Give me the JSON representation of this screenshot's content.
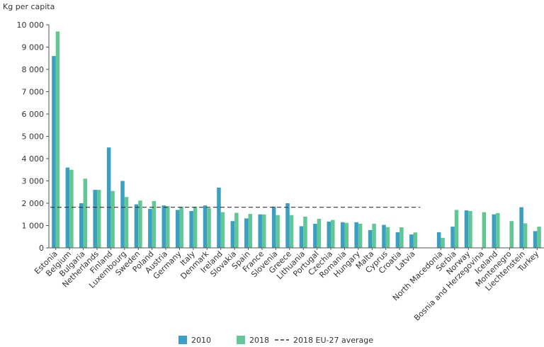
{
  "chart_data": {
    "type": "bar",
    "ylabel": "Kg per capita",
    "ylim": [
      0,
      10000
    ],
    "yticks": [
      0,
      1000,
      2000,
      3000,
      4000,
      5000,
      6000,
      7000,
      8000,
      9000,
      10000
    ],
    "ytick_labels": [
      "0",
      "1 000",
      "2 000",
      "3 000",
      "4 000",
      "5 000",
      "6 000",
      "7 000",
      "8 000",
      "9 000",
      "10 000"
    ],
    "grid": false,
    "legend_position": "bottom-center",
    "categories": [
      "Estonia",
      "Belgium",
      "Bulgaria",
      "Netherlands",
      "Finland",
      "Luxembourg",
      "Sweden",
      "Poland",
      "Austria",
      "Germany",
      "Italy",
      "Denmark",
      "Ireland",
      "Slovakia",
      "Spain",
      "France",
      "Slovenia",
      "Greece",
      "Lithuania",
      "Portugal",
      "Czechia",
      "Romania",
      "Hungary",
      "Malta",
      "Cyprus",
      "Croatia",
      "Latvia",
      "",
      "North Macedonia",
      "Serbia",
      "Norway",
      "Bosnia and Herzegovina",
      "Iceland",
      "Montenegro",
      "Liechtenstein",
      "Turkey"
    ],
    "series": [
      {
        "name": "2010",
        "color": "#3a9fc2",
        "values": [
          8600,
          3600,
          2000,
          2600,
          4500,
          3000,
          1950,
          1750,
          1900,
          1700,
          1650,
          1900,
          2700,
          1200,
          1320,
          1500,
          1850,
          2000,
          970,
          1080,
          1180,
          1150,
          1150,
          800,
          1030,
          700,
          600,
          null,
          700,
          950,
          1680,
          null,
          1500,
          null,
          1820,
          750
        ]
      },
      {
        "name": "2018",
        "color": "#62c794",
        "values": [
          9700,
          3500,
          3100,
          2600,
          2550,
          2280,
          2120,
          2100,
          1870,
          1850,
          1850,
          1780,
          1600,
          1570,
          1520,
          1500,
          1470,
          1470,
          1400,
          1300,
          1250,
          1120,
          1080,
          1080,
          930,
          920,
          690,
          null,
          450,
          1700,
          1650,
          1600,
          1560,
          1200,
          1100,
          950
        ]
      }
    ],
    "reference_line": {
      "name": "2018 EU-27 average",
      "value": 1820,
      "span_categories": [
        0,
        26
      ]
    }
  }
}
